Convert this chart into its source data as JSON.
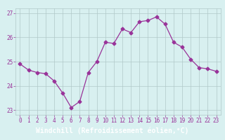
{
  "x": [
    0,
    1,
    2,
    3,
    4,
    5,
    6,
    7,
    8,
    9,
    10,
    11,
    12,
    13,
    14,
    15,
    16,
    17,
    18,
    19,
    20,
    21,
    22,
    23
  ],
  "y": [
    24.9,
    24.65,
    24.55,
    24.5,
    24.2,
    23.7,
    23.1,
    23.35,
    24.55,
    25.0,
    25.8,
    25.75,
    26.35,
    26.2,
    26.65,
    26.7,
    26.85,
    26.55,
    25.8,
    25.6,
    25.1,
    24.75,
    24.7,
    24.6
  ],
  "line_color": "#993399",
  "marker": "D",
  "marker_size": 2.5,
  "bg_color": "#d8f0f0",
  "grid_color": "#b0c8c8",
  "xlabel": "Windchill (Refroidissement éolien,°C)",
  "xlabel_bg": "#7744aa",
  "xlabel_color": "#ffffff",
  "ylim": [
    22.8,
    27.2
  ],
  "xlim": [
    -0.5,
    23.5
  ],
  "yticks": [
    23,
    24,
    25,
    26,
    27
  ],
  "xticks": [
    0,
    1,
    2,
    3,
    4,
    5,
    6,
    7,
    8,
    9,
    10,
    11,
    12,
    13,
    14,
    15,
    16,
    17,
    18,
    19,
    20,
    21,
    22,
    23
  ],
  "tick_color": "#993399",
  "tick_fontsize": 5.5,
  "xlabel_fontsize": 7.0,
  "spine_color": "#aaaaaa"
}
